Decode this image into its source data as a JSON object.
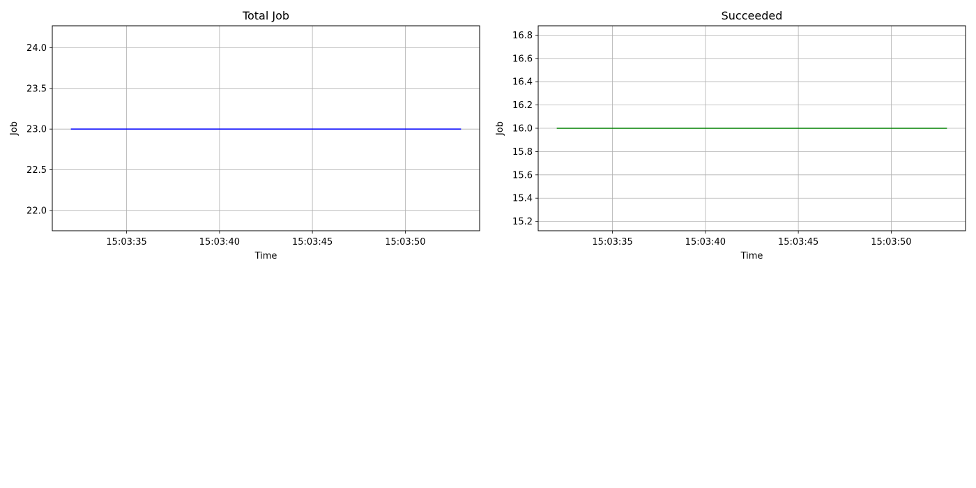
{
  "chart_data": [
    {
      "type": "line",
      "title": "Total Job",
      "xlabel": "Time",
      "ylabel": "Job",
      "x": [
        "15:03:32",
        "15:03:53"
      ],
      "x_ticks": [
        "15:03:35",
        "15:03:40",
        "15:03:45",
        "15:03:50"
      ],
      "xlim": [
        "15:03:31",
        "15:03:54"
      ],
      "y_ticks": [
        "22.0",
        "22.5",
        "23.0",
        "23.5",
        "24.0"
      ],
      "ylim": [
        21.75,
        24.27
      ],
      "grid": true,
      "series": [
        {
          "values": [
            23,
            23
          ],
          "color": "#0000ff"
        }
      ]
    },
    {
      "type": "line",
      "title": "Succeeded",
      "xlabel": "Time",
      "ylabel": "Job",
      "x": [
        "15:03:32",
        "15:03:53"
      ],
      "x_ticks": [
        "15:03:35",
        "15:03:40",
        "15:03:45",
        "15:03:50"
      ],
      "xlim": [
        "15:03:31",
        "15:03:54"
      ],
      "y_ticks": [
        "15.2",
        "15.4",
        "15.6",
        "15.8",
        "16.0",
        "16.2",
        "16.4",
        "16.6",
        "16.8"
      ],
      "ylim": [
        15.12,
        16.88
      ],
      "grid": true,
      "series": [
        {
          "values": [
            16,
            16
          ],
          "color": "#008000"
        }
      ]
    }
  ]
}
